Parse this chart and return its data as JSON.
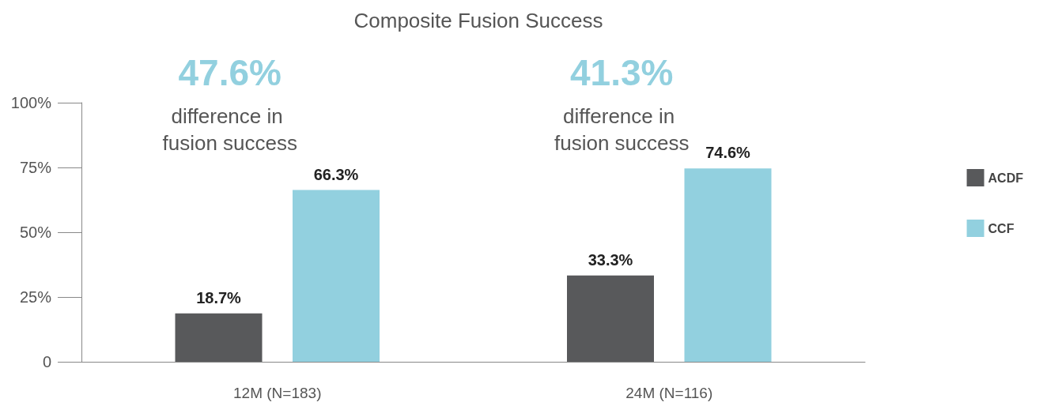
{
  "chart_data": {
    "type": "bar",
    "title": "Composite Fusion Success",
    "categories": [
      "12M (N=183)",
      "24M (N=116)"
    ],
    "series": [
      {
        "name": "ACDF",
        "color": "#58595b",
        "values": [
          18.7,
          33.3
        ],
        "value_labels": [
          "18.7%",
          "33.3%"
        ]
      },
      {
        "name": "CCF",
        "color": "#92d0df",
        "values": [
          66.3,
          74.6
        ],
        "value_labels": [
          "66.3%",
          "74.6%"
        ]
      }
    ],
    "ylim": [
      0,
      100
    ],
    "yticks": [
      {
        "value": 0,
        "label": "0"
      },
      {
        "value": 25,
        "label": "25%"
      },
      {
        "value": 50,
        "label": "50%"
      },
      {
        "value": 75,
        "label": "75%"
      },
      {
        "value": 100,
        "label": "100%"
      }
    ],
    "grid": false,
    "legend": "right",
    "annotations": [
      "47.6%",
      "difference in fusion success",
      "41.3%",
      "difference in fusion success"
    ]
  }
}
